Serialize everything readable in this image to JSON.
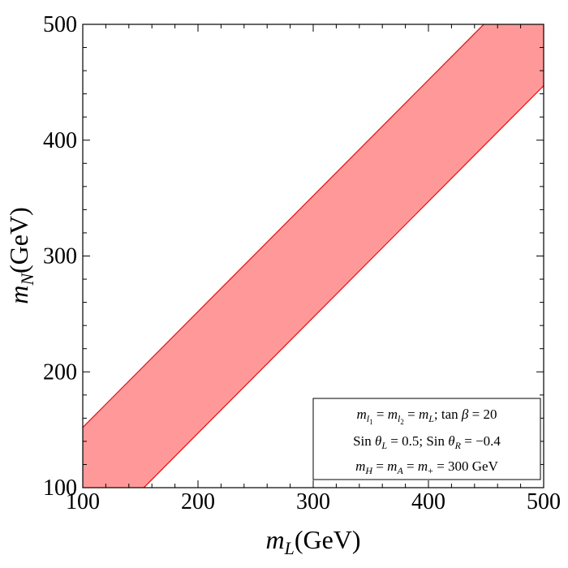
{
  "chart_data": {
    "type": "area",
    "xlim": [
      100,
      500
    ],
    "ylim": [
      100,
      500
    ],
    "x_ticks": [
      "100",
      "200",
      "300",
      "400",
      "500"
    ],
    "y_ticks": [
      "100",
      "200",
      "300",
      "400",
      "500"
    ],
    "xlabel": {
      "var": "m",
      "sub": "L",
      "unit": "(GeV)"
    },
    "ylabel": {
      "var": "m",
      "sub": "N",
      "unit": "(GeV)"
    },
    "region": {
      "color": "#ff9999",
      "edge_color": "#e31a1c",
      "upper_boundary": [
        [
          100,
          152
        ],
        [
          448,
          500
        ]
      ],
      "lower_boundary": [
        [
          153,
          100
        ],
        [
          500,
          447
        ]
      ]
    },
    "legend": {
      "placement": "bottom-right",
      "lines": [
        "m_l1 = m_l2 = m_L; tan β = 20",
        "Sin θ_L = 0.5; Sin θ_R = −0.4",
        "m_H = m_A = m_+ = 300 GeV"
      ]
    },
    "grid": false
  }
}
